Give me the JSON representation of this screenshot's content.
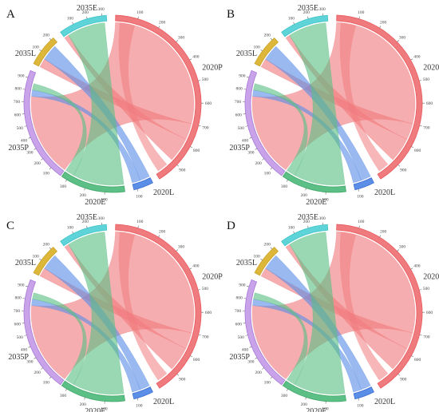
{
  "figure": {
    "panels": [
      {
        "id": "A"
      },
      {
        "id": "B"
      },
      {
        "id": "C"
      },
      {
        "id": "D"
      }
    ]
  },
  "chord": {
    "segments": [
      {
        "key": "2020P",
        "label": "2020P",
        "color": "#e8585c",
        "fill": "#f07b7e",
        "max": 1000,
        "ticks": [
          100,
          200,
          300,
          400,
          500,
          600,
          700,
          800,
          900
        ]
      },
      {
        "key": "2020L",
        "label": "2020L",
        "color": "#3d6fd6",
        "fill": "#5b8ee6",
        "max": 120,
        "ticks": [
          100
        ]
      },
      {
        "key": "2020E",
        "label": "2020E",
        "color": "#41a86a",
        "fill": "#5cbf85",
        "max": 330,
        "ticks": [
          100,
          200,
          300
        ]
      },
      {
        "key": "2035P",
        "label": "2035P",
        "color": "#a978d8",
        "fill": "#c9a3ea",
        "max": 960,
        "ticks": [
          100,
          200,
          300,
          400,
          500,
          600,
          700,
          800,
          900
        ]
      },
      {
        "key": "2035L",
        "label": "2035L",
        "color": "#c9a227",
        "fill": "#ddb73a",
        "max": 220,
        "ticks": [
          100,
          200
        ]
      },
      {
        "key": "2035E",
        "label": "2035E",
        "color": "#3cc3c9",
        "fill": "#5ed4d8",
        "max": 330,
        "ticks": [
          100,
          200,
          300
        ]
      }
    ],
    "ribbons": [
      {
        "from": "2020P",
        "to": "2035P",
        "share_from": 0.7,
        "share_to": 0.78,
        "color": "#f07b7e"
      },
      {
        "from": "2020P",
        "to": "2035L",
        "share_from": 0.08,
        "share_to": 0.3,
        "color": "#f07b7e"
      },
      {
        "from": "2020P",
        "to": "2035E",
        "share_from": 0.12,
        "share_to": 0.1,
        "color": "#f07b7e"
      },
      {
        "from": "2020P",
        "to": "2020P",
        "share_from": 0.1,
        "share_to": 0.0,
        "color": "#f07b7e"
      },
      {
        "from": "2020L",
        "to": "2035L",
        "share_from": 0.55,
        "share_to": 0.55,
        "color": "#5b8ee6"
      },
      {
        "from": "2020L",
        "to": "2035P",
        "share_from": 0.45,
        "share_to": 0.06,
        "color": "#5b8ee6"
      },
      {
        "from": "2020E",
        "to": "2035E",
        "share_from": 0.85,
        "share_to": 0.85,
        "color": "#5cbf85"
      },
      {
        "from": "2020E",
        "to": "2035P",
        "share_from": 0.15,
        "share_to": 0.06,
        "color": "#5cbf85"
      }
    ]
  }
}
